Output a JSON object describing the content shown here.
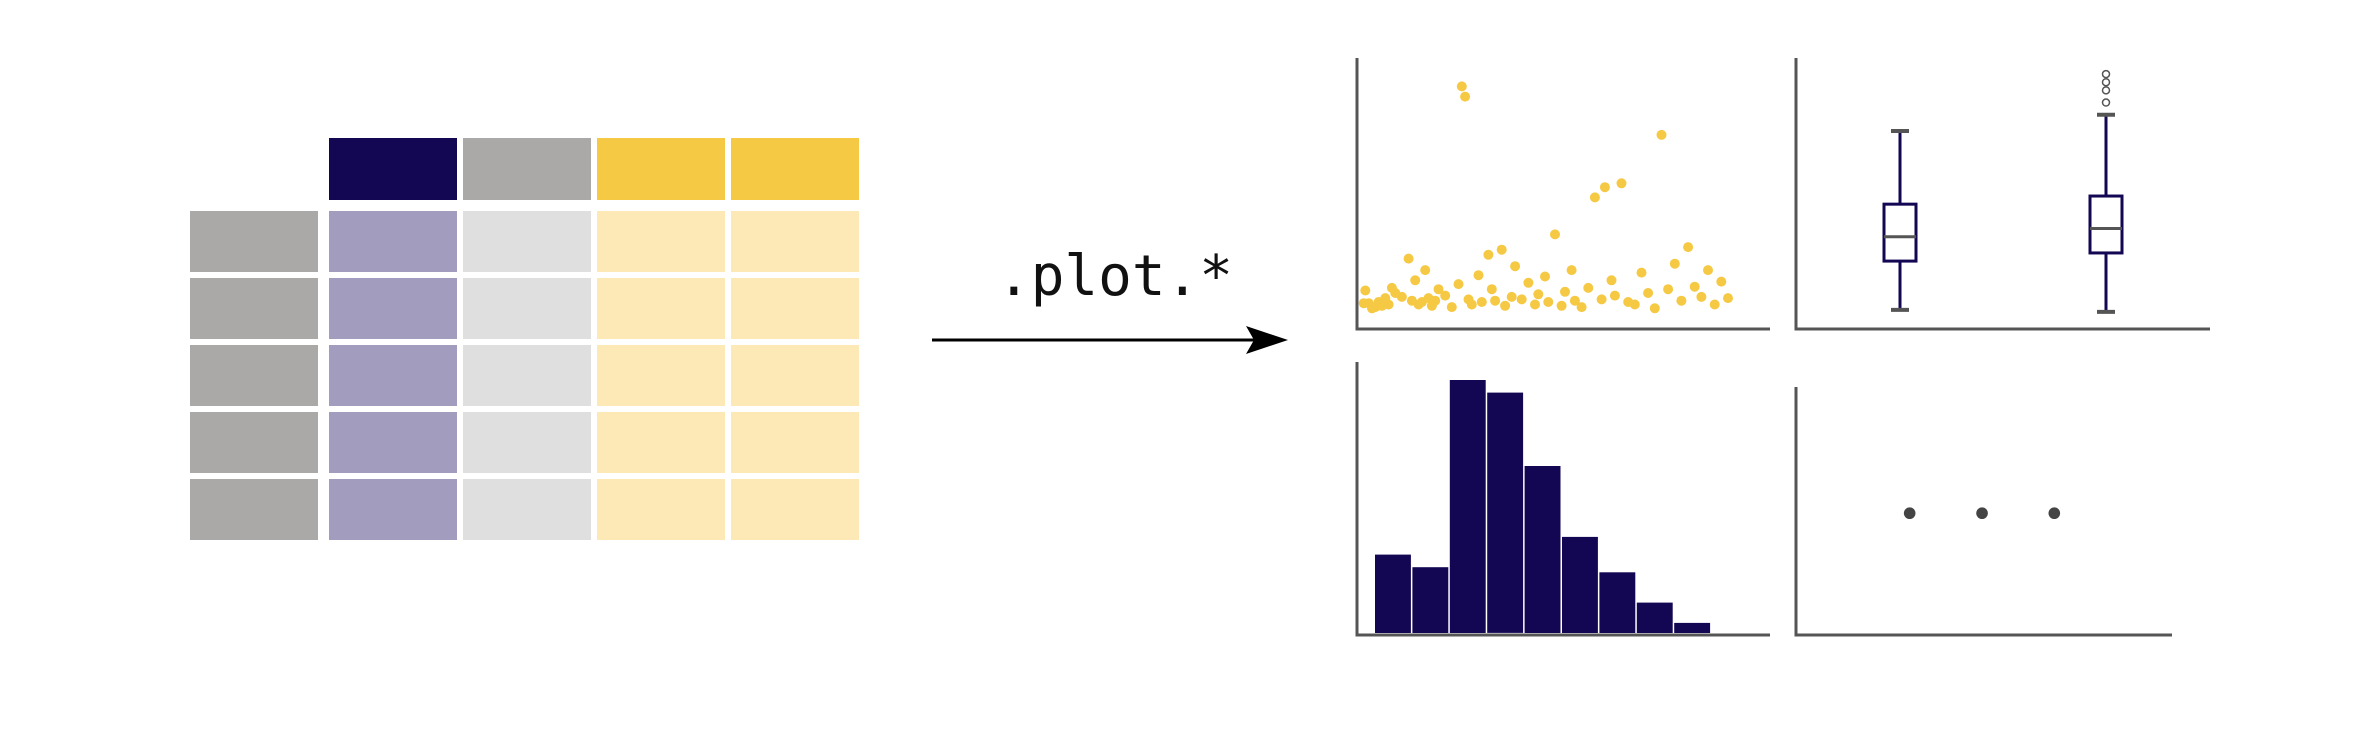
{
  "arrow": {
    "label": ".plot.*"
  },
  "colors": {
    "navy": "#130754",
    "gold": "#f5c944",
    "gray_dark": "#aaa9a7",
    "gray_light": "#dfdfdf",
    "lavender": "#a29dbe",
    "gold_light": "#fce9b6",
    "axis": "#555555"
  },
  "table": {
    "header_colors": [
      "navy",
      "gray_dark",
      "gold",
      "gold"
    ],
    "index_color": "gray_dark",
    "body_colors": [
      "lavender",
      "gray_light",
      "gold_light",
      "gold_light"
    ],
    "rows": 5
  },
  "panels": {
    "scatter": {
      "points": [
        [
          0.5,
          1
        ],
        [
          1,
          2
        ],
        [
          2,
          1
        ],
        [
          3,
          0.6
        ],
        [
          4,
          0.7
        ],
        [
          5,
          1.1
        ],
        [
          6,
          0.8
        ],
        [
          7,
          1.4
        ],
        [
          8,
          0.9
        ],
        [
          9,
          2.2
        ],
        [
          10,
          1.8
        ],
        [
          12,
          1.5
        ],
        [
          14,
          4.5
        ],
        [
          15,
          1.2
        ],
        [
          16,
          2.8
        ],
        [
          17,
          0.9
        ],
        [
          18,
          1.1
        ],
        [
          19,
          3.6
        ],
        [
          20,
          1.4
        ],
        [
          21,
          0.8
        ],
        [
          22,
          1.2
        ],
        [
          23,
          2.1
        ],
        [
          25,
          1.6
        ],
        [
          27,
          0.7
        ],
        [
          29,
          2.5
        ],
        [
          30,
          18
        ],
        [
          31,
          17.2
        ],
        [
          32,
          1.3
        ],
        [
          33,
          0.9
        ],
        [
          35,
          3.2
        ],
        [
          36,
          1.1
        ],
        [
          38,
          4.8
        ],
        [
          39,
          2.1
        ],
        [
          40,
          1.2
        ],
        [
          42,
          5.2
        ],
        [
          43,
          0.8
        ],
        [
          45,
          1.5
        ],
        [
          46,
          3.9
        ],
        [
          48,
          1.3
        ],
        [
          50,
          2.6
        ],
        [
          52,
          0.9
        ],
        [
          53,
          1.7
        ],
        [
          55,
          3.1
        ],
        [
          56,
          1.1
        ],
        [
          58,
          6.4
        ],
        [
          60,
          0.8
        ],
        [
          61,
          1.9
        ],
        [
          63,
          3.6
        ],
        [
          64,
          1.2
        ],
        [
          66,
          0.7
        ],
        [
          68,
          2.2
        ],
        [
          70,
          9.3
        ],
        [
          72,
          1.3
        ],
        [
          73,
          10.1
        ],
        [
          75,
          2.8
        ],
        [
          76,
          1.6
        ],
        [
          78,
          10.4
        ],
        [
          80,
          1.1
        ],
        [
          82,
          0.9
        ],
        [
          84,
          3.4
        ],
        [
          86,
          1.8
        ],
        [
          88,
          0.6
        ],
        [
          90,
          14.2
        ],
        [
          92,
          2.1
        ],
        [
          94,
          4.1
        ],
        [
          96,
          1.2
        ],
        [
          98,
          5.4
        ],
        [
          100,
          2.3
        ],
        [
          102,
          1.5
        ],
        [
          104,
          3.6
        ],
        [
          106,
          0.9
        ],
        [
          108,
          2.7
        ],
        [
          110,
          1.4
        ]
      ]
    },
    "boxplots": [
      {
        "min": 0.2,
        "q1": 1.4,
        "median": 2.0,
        "q3": 2.8,
        "max": 4.6,
        "outliers": []
      },
      {
        "min": 0.15,
        "q1": 1.6,
        "median": 2.2,
        "q3": 3.0,
        "max": 5.0,
        "outliers": [
          5.3,
          5.6,
          5.8,
          6.0
        ]
      }
    ],
    "histogram": {
      "values": [
        31,
        26,
        100,
        95,
        66,
        38,
        24,
        12,
        4
      ]
    },
    "more": {
      "symbol": "• • •"
    }
  }
}
